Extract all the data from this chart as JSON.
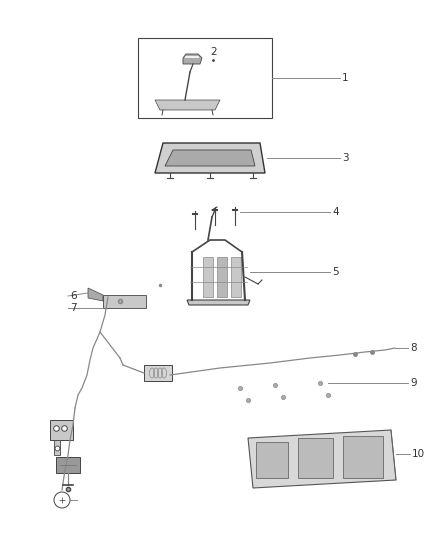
{
  "bg_color": "#ffffff",
  "line_color": "#888888",
  "dark_line": "#444444",
  "text_color": "#333333",
  "fig_width": 4.38,
  "fig_height": 5.33,
  "dpi": 100,
  "label_fs": 7.5,
  "part_gray": "#c8c8c8",
  "dark_gray": "#888888",
  "mid_gray": "#aaaaaa"
}
